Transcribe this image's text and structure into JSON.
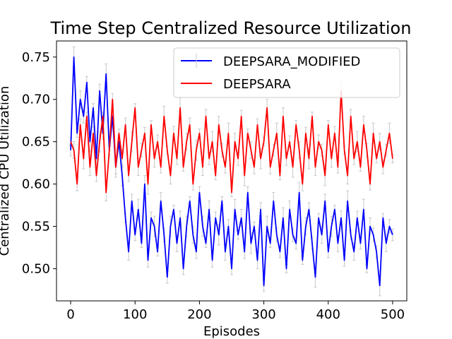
{
  "chart_data": {
    "type": "line",
    "title": "Time Step Centralized Resource Utilization",
    "xlabel": "Episodes",
    "ylabel": "Centralized CPU Utilization",
    "xlim": [
      -22,
      522
    ],
    "ylim": [
      0.462,
      0.769
    ],
    "xticks": [
      0,
      100,
      200,
      300,
      400,
      500
    ],
    "yticks": [
      0.5,
      0.55,
      0.6,
      0.65,
      0.7,
      0.75
    ],
    "xtick_labels": [
      "0",
      "100",
      "200",
      "300",
      "400",
      "500"
    ],
    "ytick_labels": [
      "0.50",
      "0.55",
      "0.60",
      "0.65",
      "0.70",
      "0.75"
    ],
    "grid": false,
    "legend_position": "top-right",
    "error_bar_color": "#c8c8c8",
    "series": [
      {
        "name": "DEEPSARA_MODIFIED",
        "color": "#0000ff",
        "x": [
          0,
          5,
          10,
          15,
          20,
          25,
          30,
          35,
          40,
          45,
          50,
          55,
          60,
          65,
          70,
          75,
          80,
          85,
          90,
          95,
          100,
          105,
          110,
          115,
          120,
          125,
          130,
          135,
          140,
          145,
          150,
          155,
          160,
          165,
          170,
          175,
          180,
          185,
          190,
          195,
          200,
          205,
          210,
          215,
          220,
          225,
          230,
          235,
          240,
          245,
          250,
          255,
          260,
          265,
          270,
          275,
          280,
          285,
          290,
          295,
          300,
          305,
          310,
          315,
          320,
          325,
          330,
          335,
          340,
          345,
          350,
          355,
          360,
          365,
          370,
          375,
          380,
          385,
          390,
          395,
          400,
          405,
          410,
          415,
          420,
          425,
          430,
          435,
          440,
          445,
          450,
          455,
          460,
          465,
          470,
          475,
          480,
          485,
          490,
          495,
          500
        ],
        "y": [
          0.64,
          0.75,
          0.66,
          0.7,
          0.68,
          0.72,
          0.65,
          0.69,
          0.63,
          0.71,
          0.66,
          0.73,
          0.64,
          0.68,
          0.62,
          0.65,
          0.61,
          0.56,
          0.52,
          0.58,
          0.54,
          0.57,
          0.53,
          0.6,
          0.51,
          0.56,
          0.55,
          0.52,
          0.58,
          0.54,
          0.49,
          0.55,
          0.57,
          0.53,
          0.56,
          0.5,
          0.55,
          0.58,
          0.54,
          0.52,
          0.59,
          0.55,
          0.53,
          0.57,
          0.51,
          0.56,
          0.54,
          0.58,
          0.52,
          0.55,
          0.5,
          0.57,
          0.54,
          0.56,
          0.52,
          0.59,
          0.53,
          0.55,
          0.51,
          0.57,
          0.48,
          0.55,
          0.53,
          0.58,
          0.54,
          0.52,
          0.56,
          0.5,
          0.57,
          0.54,
          0.53,
          0.59,
          0.51,
          0.55,
          0.57,
          0.53,
          0.49,
          0.56,
          0.54,
          0.58,
          0.52,
          0.55,
          0.57,
          0.53,
          0.56,
          0.51,
          0.58,
          0.54,
          0.52,
          0.56,
          0.53,
          0.57,
          0.5,
          0.55,
          0.54,
          0.52,
          0.48,
          0.56,
          0.53,
          0.55,
          0.54
        ]
      },
      {
        "name": "DEEPSARA",
        "color": "#ff0000",
        "x": [
          0,
          5,
          10,
          15,
          20,
          25,
          30,
          35,
          40,
          45,
          50,
          55,
          60,
          65,
          70,
          75,
          80,
          85,
          90,
          95,
          100,
          105,
          110,
          115,
          120,
          125,
          130,
          135,
          140,
          145,
          150,
          155,
          160,
          165,
          170,
          175,
          180,
          185,
          190,
          195,
          200,
          205,
          210,
          215,
          220,
          225,
          230,
          235,
          240,
          245,
          250,
          255,
          260,
          265,
          270,
          275,
          280,
          285,
          290,
          295,
          300,
          305,
          310,
          315,
          320,
          325,
          330,
          335,
          340,
          345,
          350,
          355,
          360,
          365,
          370,
          375,
          380,
          385,
          390,
          395,
          400,
          405,
          410,
          415,
          420,
          425,
          430,
          435,
          440,
          445,
          450,
          455,
          460,
          465,
          470,
          475,
          480,
          485,
          490,
          495,
          500
        ],
        "y": [
          0.65,
          0.64,
          0.6,
          0.67,
          0.63,
          0.68,
          0.62,
          0.66,
          0.61,
          0.65,
          0.68,
          0.59,
          0.64,
          0.7,
          0.62,
          0.66,
          0.63,
          0.67,
          0.61,
          0.65,
          0.69,
          0.62,
          0.64,
          0.66,
          0.6,
          0.67,
          0.63,
          0.65,
          0.62,
          0.68,
          0.64,
          0.61,
          0.66,
          0.63,
          0.69,
          0.62,
          0.65,
          0.67,
          0.6,
          0.64,
          0.66,
          0.62,
          0.68,
          0.63,
          0.65,
          0.61,
          0.67,
          0.64,
          0.62,
          0.66,
          0.59,
          0.65,
          0.63,
          0.68,
          0.61,
          0.66,
          0.64,
          0.62,
          0.67,
          0.63,
          0.65,
          0.69,
          0.62,
          0.64,
          0.66,
          0.61,
          0.68,
          0.63,
          0.65,
          0.62,
          0.67,
          0.64,
          0.6,
          0.66,
          0.63,
          0.68,
          0.62,
          0.65,
          0.64,
          0.61,
          0.67,
          0.63,
          0.66,
          0.62,
          0.71,
          0.64,
          0.61,
          0.68,
          0.63,
          0.65,
          0.62,
          0.67,
          0.64,
          0.6,
          0.66,
          0.63,
          0.65,
          0.62,
          0.64,
          0.66,
          0.63
        ]
      }
    ]
  }
}
